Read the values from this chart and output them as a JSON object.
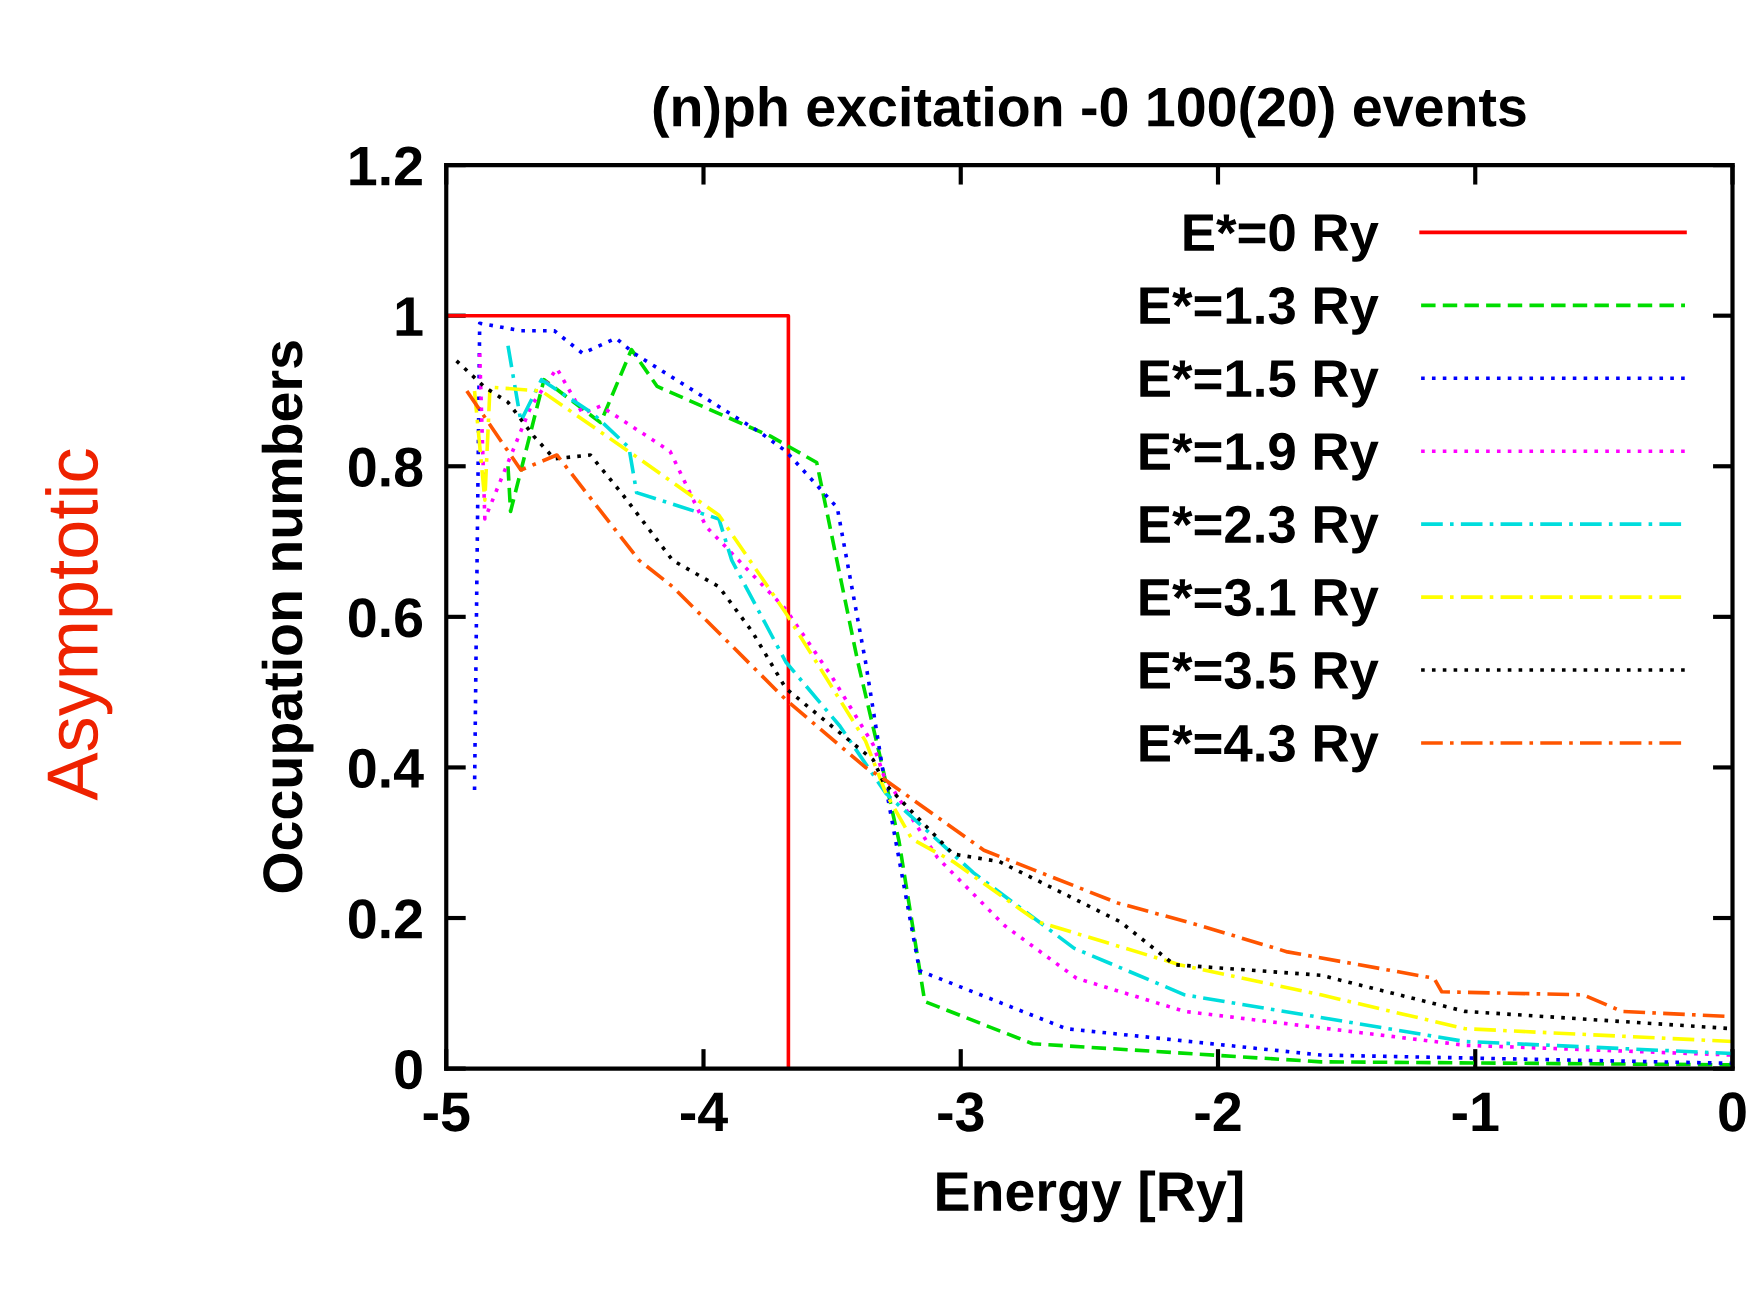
{
  "chart_data": {
    "type": "line",
    "title": "(n)ph excitation -0 100(20) events",
    "xlabel": "Energy [Ry]",
    "ylabel": "Occupation numbers",
    "annotations": [
      "Asymptotic"
    ],
    "xlim": [
      -5,
      0
    ],
    "ylim": [
      0,
      1.2
    ],
    "xticks": [
      -5,
      -4,
      -3,
      -2,
      -1,
      0
    ],
    "yticks": [
      0,
      0.2,
      0.4,
      0.6,
      0.8,
      1,
      1.2
    ],
    "grid": false,
    "legend": "top right",
    "marker": "none",
    "series": [
      {
        "name": "E*=0 Ry",
        "color": "#ff0000",
        "line_style": "solid",
        "x": [
          -5,
          -3.67,
          -3.67
        ],
        "values": [
          1,
          1,
          0
        ]
      },
      {
        "name": "E*=1.3 Ry",
        "color": "#00dd00",
        "line_style": "dashed",
        "x": [
          -4.76,
          -4.75,
          -4.62,
          -4.4,
          -4.28,
          -4.18,
          -3.74,
          -3.56,
          -3.4,
          -3.31,
          -3.24,
          -3.14,
          -2.72,
          -1.6,
          0
        ],
        "values": [
          0.8,
          0.74,
          0.915,
          0.858,
          0.955,
          0.906,
          0.84,
          0.805,
          0.54,
          0.409,
          0.302,
          0.089,
          0.033,
          0.009,
          0.005
        ]
      },
      {
        "name": "E*=1.5 Ry",
        "color": "#0000ff",
        "line_style": "dotted",
        "x": [
          -4.89,
          -4.87,
          -4.71,
          -4.58,
          -4.47,
          -4.34,
          -4.27,
          -3.78,
          -3.68,
          -3.48,
          -3.37,
          -3.3,
          -3.16,
          -2.59,
          -1.6,
          0
        ],
        "values": [
          0.37,
          0.99,
          0.98,
          0.98,
          0.95,
          0.97,
          0.95,
          0.845,
          0.82,
          0.745,
          0.54,
          0.39,
          0.13,
          0.053,
          0.018,
          0.007
        ]
      },
      {
        "name": "E*=1.9 Ry",
        "color": "#ff00ff",
        "line_style": "dotted",
        "x": [
          -4.87,
          -4.85,
          -4.67,
          -4.57,
          -4.47,
          -4.4,
          -4.13,
          -3.99,
          -3.68,
          -3.5,
          -3.34,
          -3.3,
          -3.09,
          -2.83,
          -2.55,
          -2.13,
          -1.04,
          0
        ],
        "values": [
          0.95,
          0.73,
          0.88,
          0.93,
          0.87,
          0.88,
          0.82,
          0.72,
          0.61,
          0.52,
          0.43,
          0.39,
          0.28,
          0.19,
          0.12,
          0.076,
          0.031,
          0.018
        ]
      },
      {
        "name": "E*=2.3 Ry",
        "color": "#00dddd",
        "line_style": "dashdot",
        "x": [
          -4.76,
          -4.71,
          -4.63,
          -4.43,
          -4.29,
          -4.26,
          -3.94,
          -3.89,
          -3.68,
          -3.47,
          -3.33,
          -3.29,
          -2.95,
          -2.56,
          -2.13,
          -1.04,
          0
        ],
        "values": [
          0.96,
          0.86,
          0.915,
          0.87,
          0.825,
          0.765,
          0.73,
          0.675,
          0.54,
          0.455,
          0.385,
          0.365,
          0.26,
          0.16,
          0.098,
          0.036,
          0.02
        ]
      },
      {
        "name": "E*=3.1 Ry",
        "color": "#ffff00",
        "line_style": "dashdot",
        "x": [
          -4.89,
          -4.85,
          -4.83,
          -4.63,
          -4.25,
          -3.94,
          -3.68,
          -3.37,
          -3.29,
          -3.19,
          -3.03,
          -2.7,
          -2.15,
          -1.6,
          -1.04,
          0
        ],
        "values": [
          0.9,
          0.755,
          0.905,
          0.9,
          0.81,
          0.735,
          0.605,
          0.435,
          0.365,
          0.305,
          0.275,
          0.195,
          0.138,
          0.098,
          0.053,
          0.036
        ]
      },
      {
        "name": "E*=3.5 Ry",
        "color": "#000000",
        "line_style": "dotted",
        "x": [
          -4.96,
          -4.85,
          -4.76,
          -4.66,
          -4.58,
          -4.44,
          -4.32,
          -4.12,
          -3.94,
          -3.81,
          -3.68,
          -3.52,
          -3.34,
          -3.3,
          -3.03,
          -2.85,
          -2.38,
          -2.17,
          -1.6,
          -1.04,
          0
        ],
        "values": [
          0.94,
          0.905,
          0.885,
          0.84,
          0.81,
          0.815,
          0.765,
          0.675,
          0.64,
          0.58,
          0.505,
          0.46,
          0.41,
          0.38,
          0.285,
          0.275,
          0.195,
          0.138,
          0.124,
          0.076,
          0.053
        ]
      },
      {
        "name": "E*=4.3 Ry",
        "color": "#ff5500",
        "line_style": "dashdot",
        "x": [
          -4.92,
          -4.71,
          -4.57,
          -4.25,
          -4.12,
          -3.68,
          -3.37,
          -3.3,
          -2.91,
          -2.39,
          -2.07,
          -1.73,
          -1.16,
          -1.13,
          -0.58,
          -0.43,
          0
        ],
        "values": [
          0.9,
          0.795,
          0.815,
          0.675,
          0.64,
          0.49,
          0.4,
          0.385,
          0.29,
          0.22,
          0.19,
          0.155,
          0.12,
          0.102,
          0.098,
          0.076,
          0.069
        ]
      }
    ]
  }
}
